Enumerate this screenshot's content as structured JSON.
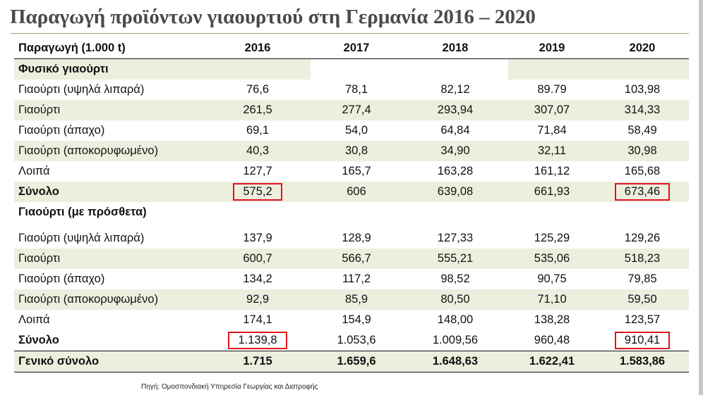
{
  "title": "Παραγωγή προϊόντων γιαουρτιού στη Γερμανία 2016 – 2020",
  "table": {
    "headers": [
      "Παραγωγή (1.000 t)",
      "2016",
      "2017",
      "2018",
      "2019",
      "2020"
    ],
    "sections": [
      {
        "heading": "Φυσικό γιαούρτι",
        "rows": [
          {
            "label": "Γιαούρτι (υψηλά λιπαρά)",
            "values": [
              "76,6",
              "78,1",
              "82,12",
              "89.79",
              "103,98"
            ]
          },
          {
            "label": "Γιαούρτι",
            "values": [
              "261,5",
              "277,4",
              "293,94",
              "307,07",
              "314,33"
            ]
          },
          {
            "label": "Γιαούρτι (άπαχο)",
            "values": [
              "69,1",
              "54,0",
              "64,84",
              "71,84",
              "58,49"
            ]
          },
          {
            "label": "Γιαούρτι (αποκορυφωμένο)",
            "values": [
              "40,3",
              "30,8",
              "34,90",
              "32,11",
              "30,98"
            ]
          },
          {
            "label": "Λοιπά",
            "values": [
              "127,7",
              "165,7",
              "163,28",
              "161,12",
              "165,68"
            ]
          }
        ],
        "total": {
          "label": "Σύνολο",
          "values": [
            "575,2",
            "606",
            "639,08",
            "661,93",
            "673,46"
          ]
        }
      },
      {
        "heading": "Γιαούρτι (με πρόσθετα)",
        "rows": [
          {
            "label": "Γιαούρτι (υψηλά λιπαρά)",
            "values": [
              "137,9",
              "128,9",
              "127,33",
              "125,29",
              "129,26"
            ]
          },
          {
            "label": "Γιαούρτι",
            "values": [
              "600,7",
              "566,7",
              "555,21",
              "535,06",
              "518,23"
            ]
          },
          {
            "label": "Γιαούρτι (άπαχο)",
            "values": [
              "134,2",
              "117,2",
              "98,52",
              "90,75",
              "79,85"
            ]
          },
          {
            "label": "Γιαούρτι (αποκορυφωμένο)",
            "values": [
              "92,9",
              "85,9",
              "80,50",
              "71,10",
              "59,50"
            ]
          },
          {
            "label": "Λοιπά",
            "values": [
              "174,1",
              "154,9",
              "148,00",
              "138,28",
              "123,57"
            ]
          }
        ],
        "total": {
          "label": "Σύνολο",
          "values": [
            "1.139,8",
            "1.053,6",
            "1.009,56",
            "960,48",
            "910,41"
          ]
        }
      }
    ],
    "grand_total": {
      "label": "Γενικό σύνολο",
      "values": [
        "1.715",
        "1.659,6",
        "1.648,63",
        "1.622,41",
        "1.583,86"
      ]
    },
    "highlight_color": "#e0141e",
    "shade_color": "#eeeedf"
  },
  "source": "Πηγή: Ομοσπονδιακή Υπηρεσία Γεωργίας και Διατροφής"
}
